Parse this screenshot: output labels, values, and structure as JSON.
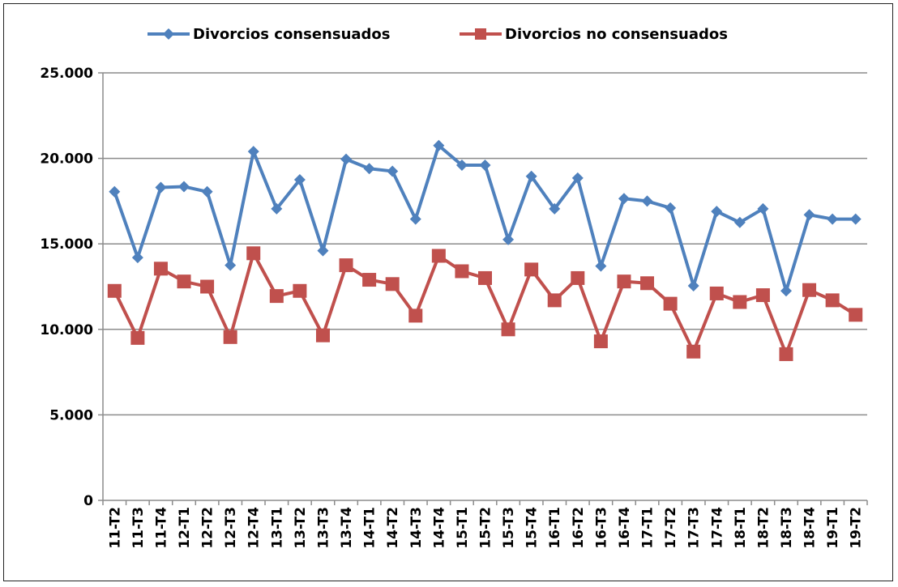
{
  "chart_data": {
    "type": "line",
    "categories": [
      "11-T2",
      "11-T3",
      "11-T4",
      "12-T1",
      "12-T2",
      "12-T3",
      "12-T4",
      "13-T1",
      "13-T2",
      "13-T3",
      "13-T4",
      "14-T1",
      "14-T2",
      "14-T3",
      "14-T4",
      "15-T1",
      "15-T2",
      "15-T3",
      "15-T4",
      "16-T1",
      "16-T2",
      "16-T3",
      "16-T4",
      "17-T1",
      "17-T2",
      "17-T3",
      "17-T4",
      "18-T1",
      "18-T2",
      "18-T3",
      "18-T4",
      "19-T1",
      "19-T2"
    ],
    "series": [
      {
        "name": "Divorcios consensuados",
        "color": "#4F81BD",
        "marker": "diamond",
        "values": [
          18050,
          14200,
          18300,
          18350,
          18050,
          13750,
          20400,
          17050,
          18750,
          14600,
          19950,
          19400,
          19250,
          16450,
          20750,
          19600,
          19600,
          15250,
          18950,
          17050,
          18850,
          13700,
          17650,
          17500,
          17100,
          12550,
          16900,
          16250,
          17050,
          12250,
          16700,
          16450,
          16450
        ]
      },
      {
        "name": "Divorcios no consensuados",
        "color": "#C0504D",
        "marker": "square",
        "values": [
          12250,
          9500,
          13550,
          12800,
          12500,
          9550,
          14450,
          11950,
          12250,
          9650,
          13750,
          12900,
          12650,
          10800,
          14300,
          13400,
          13000,
          10000,
          13500,
          11700,
          13000,
          9300,
          12800,
          12700,
          11500,
          8700,
          12100,
          11600,
          12000,
          8550,
          12300,
          11700,
          10850
        ]
      }
    ],
    "ylim": [
      0,
      25000
    ],
    "yticks": [
      0,
      5000,
      10000,
      15000,
      20000,
      25000
    ],
    "ytick_labels": [
      "0",
      "5.000",
      "10.000",
      "15.000",
      "20.000",
      "25.000"
    ],
    "grid": true,
    "legend_position": "top-center",
    "title": "",
    "xlabel": "",
    "ylabel": ""
  }
}
